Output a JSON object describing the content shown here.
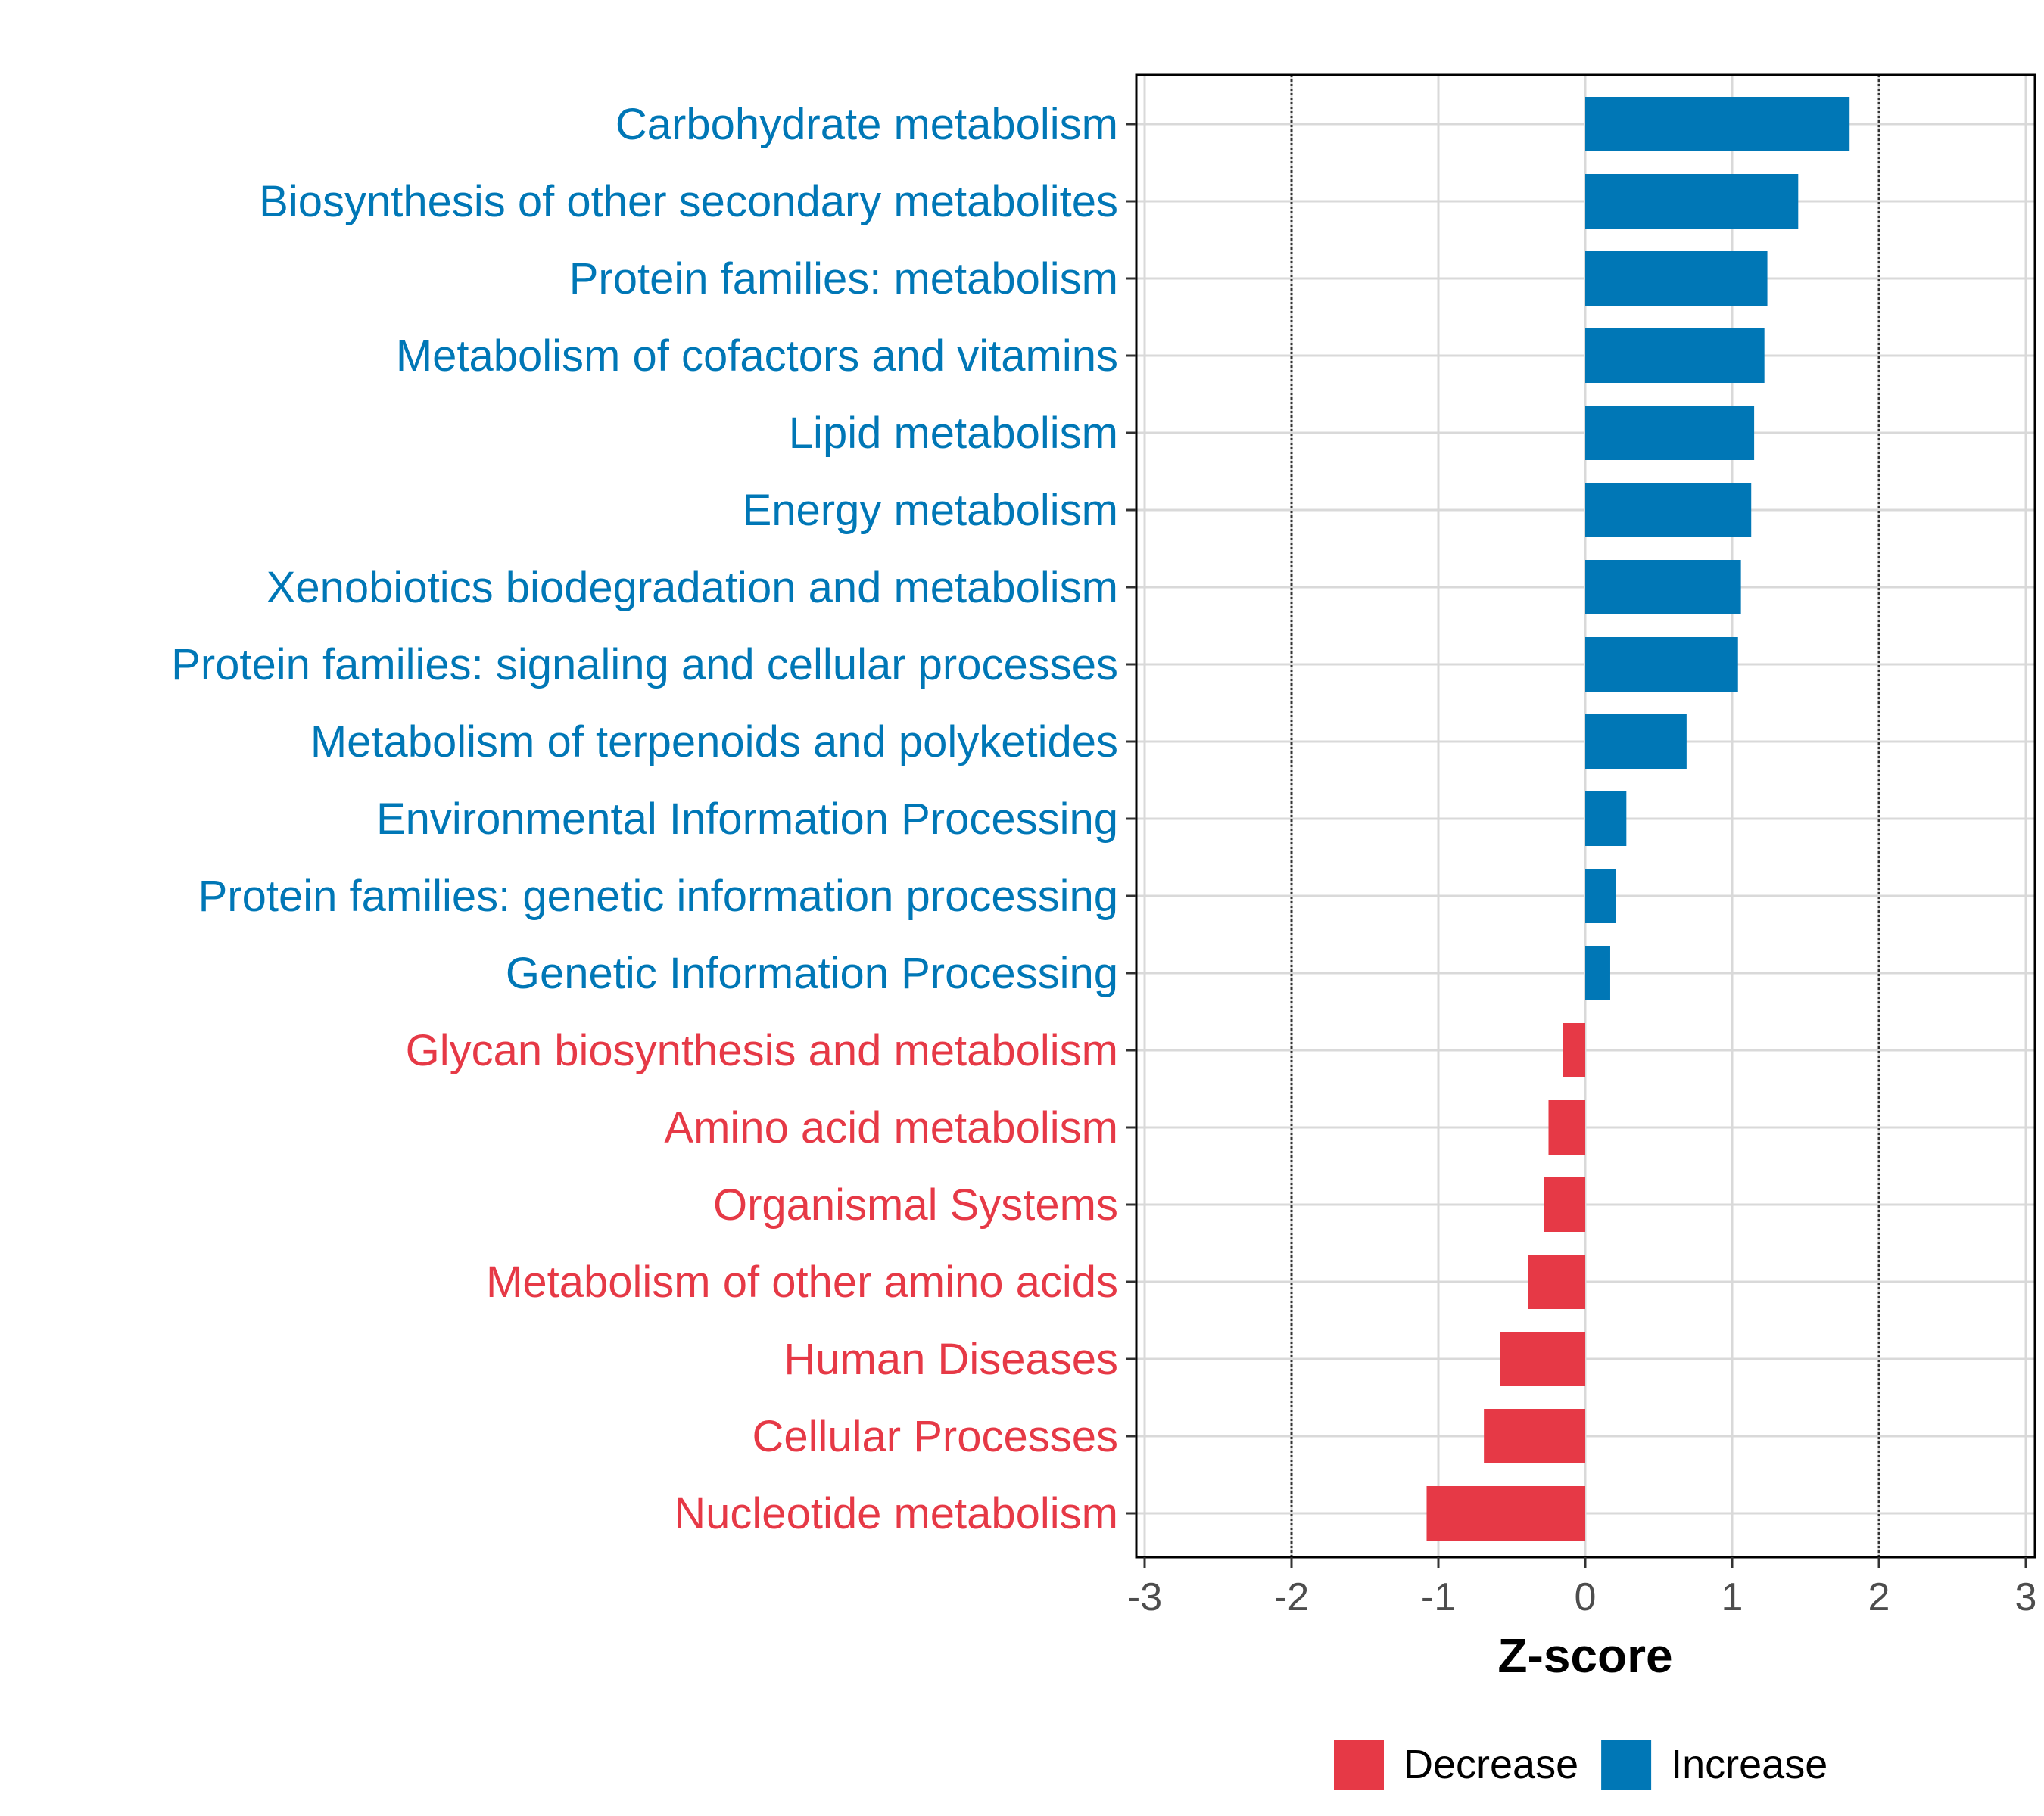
{
  "chart_data": {
    "type": "bar",
    "orientation": "horizontal",
    "title": "",
    "xlabel": "Z-score",
    "ylabel": "",
    "xlim": [
      -3,
      3
    ],
    "xticks": [
      "-3",
      "-2",
      "-1",
      "0",
      "1",
      "2",
      "3"
    ],
    "reference_lines": [
      -2,
      2
    ],
    "grid": true,
    "categories": [
      "Carbohydrate metabolism",
      "Biosynthesis of other secondary metabolites",
      "Protein families: metabolism",
      "Metabolism of cofactors and vitamins",
      "Lipid metabolism",
      "Energy metabolism",
      "Xenobiotics biodegradation and metabolism",
      "Protein families: signaling and cellular processes",
      "Metabolism of terpenoids and polyketides",
      "Environmental Information Processing",
      "Protein families: genetic information processing",
      "Genetic Information Processing",
      "Glycan biosynthesis and metabolism",
      "Amino acid metabolism",
      "Organismal Systems",
      "Metabolism of other amino acids",
      "Human Diseases",
      "Cellular Processes",
      "Nucleotide metabolism"
    ],
    "values": [
      1.8,
      1.45,
      1.24,
      1.22,
      1.15,
      1.13,
      1.06,
      1.04,
      0.69,
      0.28,
      0.21,
      0.17,
      -0.15,
      -0.25,
      -0.28,
      -0.39,
      -0.58,
      -0.69,
      -1.08
    ],
    "legend": {
      "placement": "bottom",
      "entries": [
        {
          "label": "Decrease",
          "color": "#E63946"
        },
        {
          "label": "Increase",
          "color": "#0077B6"
        }
      ]
    }
  }
}
